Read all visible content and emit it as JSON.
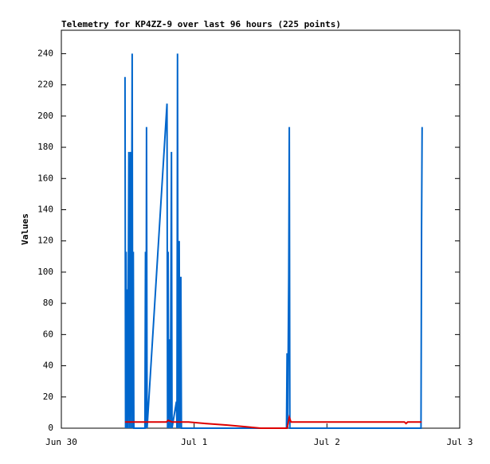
{
  "chart_data": {
    "type": "line",
    "title": "Telemetry for KP4ZZ-9 over last 96 hours (225 points)",
    "y_label": "Values",
    "xlim": [
      0,
      72
    ],
    "xticks": [
      {
        "value": 0,
        "label": "Jun 30"
      },
      {
        "value": 24,
        "label": "Jul 1"
      },
      {
        "value": 48,
        "label": "Jul 2"
      },
      {
        "value": 72,
        "label": "Jul 3"
      }
    ],
    "ylim": [
      0,
      255
    ],
    "yticks": [
      0,
      20,
      40,
      60,
      80,
      100,
      120,
      140,
      160,
      180,
      200,
      220,
      240
    ],
    "series": [
      {
        "color": "#0066cc",
        "x": [
          11.5,
          11.6,
          11.7,
          11.8,
          11.9,
          12.0,
          12.2,
          12.3,
          12.5,
          12.6,
          12.8,
          12.9,
          13.0,
          13.1,
          15.1,
          15.2,
          15.3,
          15.4,
          15.5,
          19.1,
          19.2,
          19.3,
          19.4,
          19.6,
          19.7,
          19.9,
          20.0,
          20.8,
          20.9,
          21.0,
          21.1,
          21.3,
          21.4,
          21.6,
          21.7,
          40.7,
          40.8,
          40.9,
          41.1,
          41.2,
          41.3,
          65.0,
          65.1,
          65.2
        ],
        "values": [
          225,
          0,
          113,
          0,
          89,
          0,
          177,
          0,
          177,
          0,
          240,
          0,
          113,
          0,
          0,
          113,
          0,
          193,
          0,
          208,
          0,
          113,
          0,
          57,
          0,
          177,
          0,
          17,
          0,
          240,
          0,
          120,
          0,
          97,
          0,
          0,
          48,
          0,
          97,
          193,
          0,
          0,
          128,
          193
        ]
      },
      {
        "color": "#dd0000",
        "x": [
          11.5,
          19.0,
          19.3,
          20.0,
          23,
          26,
          30,
          33,
          36,
          39,
          40.8,
          41.2,
          41.5,
          62,
          62.3,
          62.6,
          65.1
        ],
        "values": [
          4,
          4,
          5,
          4,
          4,
          3,
          2,
          1,
          0,
          0,
          0,
          7,
          4,
          4,
          3,
          4,
          4
        ]
      }
    ]
  }
}
